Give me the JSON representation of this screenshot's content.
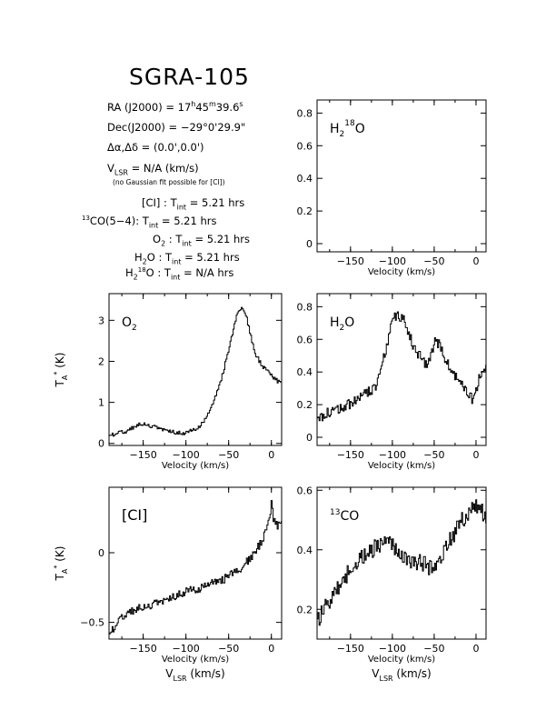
{
  "page": {
    "title": "SGRA-105",
    "ra_label": "RA (J2000) =",
    "ra_value": {
      "h": "17",
      "m": "45",
      "s": "39.6"
    },
    "dec_label": "Dec(J2000) =",
    "dec_value": "−29°0'29.9\"",
    "offset_label": "Δα,Δδ =",
    "offset_value": "(0.0',0.0')",
    "vlsr_value": "= N/A  (km/s)",
    "vlsr_note": "(no Gaussian fit possible for [CI])",
    "integration_times": [
      {
        "species": "[CI]",
        "value": "= 5.21 hrs"
      },
      {
        "species": "13CO(5−4)",
        "value": "= 5.21 hrs"
      },
      {
        "species": "O2",
        "value": "= 5.21 hrs"
      },
      {
        "species": "H2O",
        "value": "= 5.21 hrs"
      },
      {
        "species": "H218O",
        "value": "= N/A  hrs"
      }
    ]
  },
  "chart_data": [
    {
      "id": "h218o",
      "type": "line",
      "species_label": "H2 18O",
      "xlabel": "Velocity (km/s)",
      "ylabel": "",
      "xlim": [
        -190,
        12
      ],
      "ylim": [
        -0.05,
        0.88
      ],
      "xticks": [
        -150,
        -100,
        -50,
        0
      ],
      "yticks": [
        0,
        0.2,
        0.4,
        0.6,
        0.8
      ],
      "series": []
    },
    {
      "id": "o2",
      "type": "line",
      "species_label": "O2",
      "xlabel": "Velocity (km/s)",
      "ylabel": "TA* (K)",
      "xlim": [
        -190,
        12
      ],
      "ylim": [
        -0.05,
        3.65
      ],
      "xticks": [
        -150,
        -100,
        -50,
        0
      ],
      "yticks": [
        0,
        1,
        2,
        3
      ],
      "series": [
        {
          "x": [
            -190,
            -180,
            -170,
            -160,
            -150,
            -140,
            -130,
            -120,
            -110,
            -100,
            -90,
            -80,
            -70,
            -60,
            -50,
            -40,
            -35,
            -30,
            -20,
            -10,
            0,
            5,
            12
          ],
          "y": [
            0.2,
            0.25,
            0.3,
            0.42,
            0.48,
            0.42,
            0.36,
            0.3,
            0.26,
            0.25,
            0.35,
            0.5,
            0.9,
            1.5,
            2.3,
            3.2,
            3.35,
            3.1,
            2.2,
            1.85,
            1.65,
            1.55,
            1.45
          ]
        }
      ]
    },
    {
      "id": "h2o",
      "type": "line",
      "species_label": "H2O",
      "xlabel": "Velocity (km/s)",
      "ylabel": "",
      "xlim": [
        -190,
        12
      ],
      "ylim": [
        -0.05,
        0.88
      ],
      "xticks": [
        -150,
        -100,
        -50,
        0
      ],
      "yticks": [
        0,
        0.2,
        0.4,
        0.6,
        0.8
      ],
      "series": [
        {
          "x": [
            -190,
            -180,
            -170,
            -160,
            -150,
            -140,
            -130,
            -120,
            -115,
            -110,
            -105,
            -100,
            -95,
            -90,
            -85,
            -80,
            -75,
            -70,
            -65,
            -60,
            -55,
            -50,
            -45,
            -40,
            -35,
            -30,
            -25,
            -20,
            -15,
            -10,
            -5,
            0,
            5,
            12
          ],
          "y": [
            0.12,
            0.14,
            0.16,
            0.18,
            0.21,
            0.24,
            0.27,
            0.32,
            0.4,
            0.5,
            0.62,
            0.72,
            0.75,
            0.73,
            0.7,
            0.62,
            0.55,
            0.52,
            0.47,
            0.45,
            0.5,
            0.58,
            0.58,
            0.53,
            0.45,
            0.4,
            0.38,
            0.35,
            0.32,
            0.28,
            0.24,
            0.3,
            0.38,
            0.42
          ]
        }
      ]
    },
    {
      "id": "ci",
      "type": "line",
      "species_label": "[CI]",
      "xlabel": "Velocity (km/s)",
      "ylabel": "TA* (K)",
      "xlim": [
        -190,
        12
      ],
      "ylim": [
        -0.62,
        0.47
      ],
      "xticks": [
        -150,
        -100,
        -50,
        0
      ],
      "yticks": [
        -0.5,
        0
      ],
      "series": [
        {
          "x": [
            -190,
            -180,
            -170,
            -160,
            -150,
            -140,
            -130,
            -120,
            -110,
            -100,
            -90,
            -80,
            -70,
            -60,
            -50,
            -40,
            -30,
            -25,
            -20,
            -15,
            -10,
            -5,
            -2,
            0,
            2,
            5,
            12
          ],
          "y": [
            -0.58,
            -0.5,
            -0.43,
            -0.41,
            -0.39,
            -0.37,
            -0.35,
            -0.33,
            -0.3,
            -0.28,
            -0.26,
            -0.25,
            -0.22,
            -0.2,
            -0.17,
            -0.13,
            -0.07,
            -0.05,
            0.0,
            0.05,
            0.1,
            0.18,
            0.26,
            0.38,
            0.25,
            0.2,
            0.2
          ]
        }
      ]
    },
    {
      "id": "13co",
      "type": "line",
      "species_label": "13CO",
      "xlabel": "Velocity (km/s)",
      "ylabel": "",
      "xlim": [
        -190,
        12
      ],
      "ylim": [
        0.1,
        0.61
      ],
      "xticks": [
        -150,
        -100,
        -50,
        0
      ],
      "yticks": [
        0.2,
        0.4,
        0.6
      ],
      "series": [
        {
          "x": [
            -190,
            -180,
            -170,
            -160,
            -150,
            -140,
            -130,
            -120,
            -110,
            -100,
            -90,
            -80,
            -70,
            -60,
            -50,
            -40,
            -30,
            -20,
            -10,
            0,
            5,
            12
          ],
          "y": [
            0.16,
            0.21,
            0.25,
            0.3,
            0.33,
            0.36,
            0.39,
            0.41,
            0.43,
            0.42,
            0.39,
            0.37,
            0.36,
            0.35,
            0.33,
            0.38,
            0.44,
            0.49,
            0.52,
            0.55,
            0.53,
            0.52
          ]
        }
      ]
    }
  ],
  "footer": {
    "vlsr_axis_label": "km/s"
  }
}
